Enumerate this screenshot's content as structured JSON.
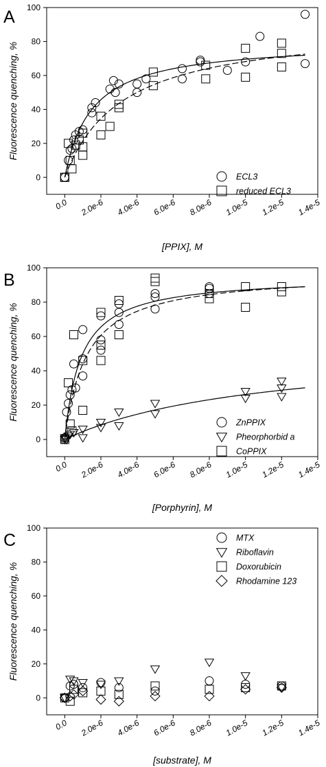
{
  "chart_data": [
    {
      "panel": "A",
      "type": "scatter",
      "title": "",
      "xlabel": "[PPIX], M",
      "ylabel": "Fluorescence quenching, %",
      "xlim": [
        -1e-06,
        1.4e-05
      ],
      "ylim": [
        -10,
        100
      ],
      "yticks": [
        "0",
        "20",
        "40",
        "60",
        "80",
        "100"
      ],
      "xticks": [
        "0.0",
        "2.0e-6",
        "4.0e-6",
        "6.0e-6",
        "8.0e-6",
        "1.0e-5",
        "1.2e-5",
        "1.4e-5"
      ],
      "legend_position": "bottom-right",
      "series": [
        {
          "name": "ECL3",
          "marker": "circle",
          "x": [
            0,
            0,
            2e-07,
            3e-07,
            4e-07,
            5e-07,
            6e-07,
            8e-07,
            1e-06,
            1.5e-06,
            1.5e-06,
            1.7e-06,
            2.5e-06,
            2.8e-06,
            2.7e-06,
            3e-06,
            4e-06,
            4e-06,
            4.5e-06,
            6.5e-06,
            6.5e-06,
            7.5e-06,
            7.5e-06,
            9e-06,
            1e-05,
            1.08e-05,
            1.33e-05,
            1.33e-05
          ],
          "y": [
            0,
            0,
            10,
            16,
            17,
            22,
            25,
            27,
            28,
            38,
            41,
            44,
            52,
            50,
            57,
            55,
            55,
            50,
            58,
            64,
            58,
            69,
            68,
            63,
            68,
            83,
            96,
            67
          ]
        },
        {
          "name": "reduced ECL3",
          "marker": "square",
          "x": [
            0,
            0,
            2e-07,
            3e-07,
            4e-07,
            6e-07,
            8e-07,
            1e-06,
            1e-06,
            2e-06,
            2e-06,
            2.5e-06,
            3e-06,
            3e-06,
            4.9e-06,
            4.9e-06,
            7.8e-06,
            7.8e-06,
            1e-06,
            1e-05,
            1e-05,
            1.2e-05,
            1.2e-05,
            1.2e-05
          ],
          "y": [
            0,
            0,
            20,
            10,
            5,
            19,
            22,
            13,
            18,
            36,
            25,
            30,
            41,
            43,
            54,
            62,
            58,
            66,
            26,
            76,
            59,
            65,
            73,
            79
          ]
        }
      ],
      "fits": [
        {
          "series": "ECL3",
          "style": "solid",
          "bmax": 80,
          "kd": 1.5e-06
        },
        {
          "series": "reduced ECL3",
          "style": "dashed",
          "bmax": 90,
          "kd": 3.2e-06
        }
      ]
    },
    {
      "panel": "B",
      "type": "scatter",
      "title": "",
      "xlabel": "[Porphyrin], M",
      "ylabel": "Fluorescence quenching, %",
      "xlim": [
        -1e-06,
        1.4e-05
      ],
      "ylim": [
        -10,
        100
      ],
      "yticks": [
        "0",
        "20",
        "40",
        "60",
        "80",
        "100"
      ],
      "xticks": [
        "0.0",
        "2.0e-6",
        "4.0e-6",
        "6.0e-6",
        "8.0e-6",
        "1.0e-5",
        "1.2e-5",
        "1.4e-5"
      ],
      "legend_position": "bottom-right",
      "series": [
        {
          "name": "ZnPPIX",
          "marker": "circle",
          "x": [
            0,
            0,
            1e-07,
            2e-07,
            3e-07,
            4e-07,
            5e-07,
            6e-07,
            1e-06,
            1e-06,
            1e-06,
            2e-06,
            2e-06,
            2e-06,
            3e-06,
            3e-06,
            3e-06,
            5e-06,
            5e-06,
            5e-06,
            8e-06,
            8e-06,
            8e-06
          ],
          "y": [
            0,
            1,
            16,
            21,
            26,
            29,
            44,
            30,
            37,
            47,
            64,
            52,
            58,
            72,
            67,
            74,
            79,
            76,
            83,
            85,
            85,
            88,
            89
          ]
        },
        {
          "name": "Pheorphorbid a",
          "marker": "triangle-down",
          "x": [
            0,
            0,
            1e-07,
            2e-07,
            3e-07,
            5e-07,
            1e-06,
            1e-06,
            2e-06,
            2e-06,
            3e-06,
            3e-06,
            5e-06,
            5e-06,
            1e-05,
            1e-05,
            1.2e-05,
            1.2e-05,
            1.2e-05
          ],
          "y": [
            0,
            1,
            0,
            2,
            3,
            4,
            1,
            6,
            7,
            10,
            8,
            16,
            15,
            21,
            24,
            28,
            25,
            30,
            34
          ]
        },
        {
          "name": "CoPPIX",
          "marker": "square",
          "x": [
            0,
            2e-07,
            3e-07,
            4e-07,
            5e-07,
            1e-06,
            1e-06,
            2e-06,
            2e-06,
            2e-06,
            3e-06,
            3e-06,
            5e-06,
            5e-06,
            8e-06,
            8e-06,
            1e-05,
            1e-05,
            1.2e-05,
            1.2e-05
          ],
          "y": [
            0,
            33,
            9,
            5,
            61,
            17,
            46,
            46,
            55,
            74,
            61,
            81,
            92,
            94,
            82,
            85,
            89,
            77,
            86,
            89
          ]
        }
      ],
      "fits": [
        {
          "series": "ZnPPIX",
          "style": "solid",
          "bmax": 95,
          "kd": 9e-07
        },
        {
          "series": "CoPPIX",
          "style": "dashed",
          "bmax": 97,
          "kd": 1.2e-06
        },
        {
          "series": "Pheorphorbid a",
          "style": "solid",
          "bmax": 55,
          "kd": 1.1e-05
        }
      ]
    },
    {
      "panel": "C",
      "type": "scatter",
      "title": "",
      "xlabel": "[substrate], M",
      "ylabel": "Fluorescence quenching, %",
      "xlim": [
        -1e-06,
        1.4e-05
      ],
      "ylim": [
        -10,
        100
      ],
      "yticks": [
        "0",
        "20",
        "40",
        "60",
        "80",
        "100"
      ],
      "xticks": [
        "0.0",
        "2.0e-6",
        "4.0e-6",
        "6.0e-6",
        "8.0e-6",
        "1.0e-5",
        "1.2e-5",
        "1.4e-5"
      ],
      "legend_position": "top-right",
      "series": [
        {
          "name": "MTX",
          "marker": "circle",
          "x": [
            0,
            3e-07,
            5e-07,
            1e-06,
            2e-06,
            3e-06,
            5e-06,
            8e-06,
            1e-05,
            1.2e-05
          ],
          "y": [
            0,
            7,
            8,
            6,
            9,
            6,
            4,
            10,
            8,
            7
          ]
        },
        {
          "name": "Riboflavin",
          "marker": "triangle-down",
          "x": [
            0,
            3e-07,
            5e-07,
            1e-06,
            2e-06,
            3e-06,
            5e-06,
            8e-06,
            1e-05,
            1.2e-05
          ],
          "y": [
            0,
            11,
            10,
            9,
            8,
            10,
            17,
            21,
            13,
            6
          ]
        },
        {
          "name": "Doxorubicin",
          "marker": "square",
          "x": [
            0,
            3e-07,
            5e-07,
            1e-06,
            2e-06,
            3e-06,
            5e-06,
            8e-06,
            1e-05,
            1.2e-05
          ],
          "y": [
            0,
            -2,
            5,
            3,
            4,
            2,
            7,
            5,
            6,
            7
          ]
        },
        {
          "name": "Rhodamine 123",
          "marker": "diamond",
          "x": [
            0,
            3e-07,
            5e-07,
            1e-06,
            2e-06,
            3e-06,
            5e-06,
            8e-06,
            1e-05,
            1.2e-05
          ],
          "y": [
            0,
            1,
            2,
            4,
            -1,
            -2,
            1,
            1,
            5,
            6
          ]
        }
      ],
      "fits": []
    }
  ]
}
